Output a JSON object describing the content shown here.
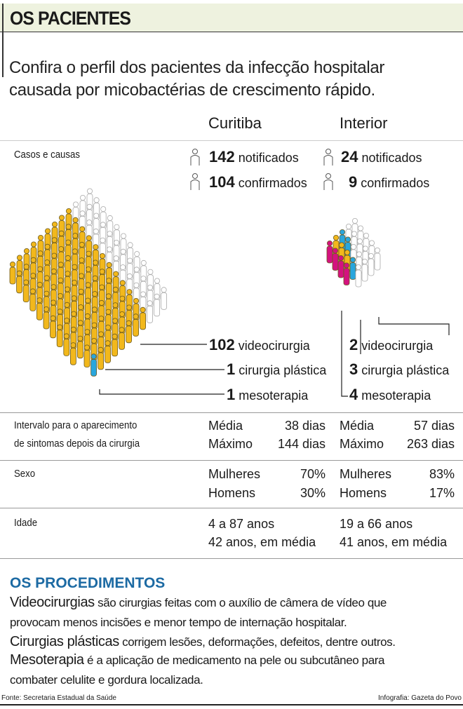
{
  "header": {
    "title": "OS PACIENTES",
    "subtitle_line1": "Confira o perfil dos pacientes da infecção hospitalar",
    "subtitle_line2": "causada por micobactérias de crescimento rápido."
  },
  "columns": {
    "curitiba": "Curitiba",
    "interior": "Interior"
  },
  "cases": {
    "label": "Casos e causas",
    "curitiba": {
      "notified": 142,
      "notified_label": "notificados",
      "confirmed": 104,
      "confirmed_label": "confirmados",
      "causes": [
        {
          "count": "102",
          "label": "videocirurgia"
        },
        {
          "count": "1",
          "label": "cirurgia plástica"
        },
        {
          "count": "1",
          "label": "mesoterapia"
        }
      ]
    },
    "interior": {
      "notified": 24,
      "notified_label": "notificados",
      "confirmed": 9,
      "confirmed_label": "confirmados",
      "causes": [
        {
          "count": "2",
          "label": "videocirurgia"
        },
        {
          "count": "3",
          "label": "cirurgia plástica"
        },
        {
          "count": "4",
          "label": "mesoterapia"
        }
      ]
    },
    "colors": {
      "videocirurgia": "#f2b81c",
      "cirurgia_plastica": "#29a6dd",
      "mesoterapia": "#d4127f",
      "not_confirmed": "#ffffff"
    }
  },
  "interval": {
    "label_line1": "Intervalo para o aparecimento",
    "label_line2": "de sintomas depois da cirurgia",
    "curitiba": {
      "avg_label": "Média",
      "avg": "38 dias",
      "max_label": "Máximo",
      "max": "144 dias"
    },
    "interior": {
      "avg_label": "Média",
      "avg": "57 dias",
      "max_label": "Máximo",
      "max": "263 dias"
    }
  },
  "sex": {
    "label": "Sexo",
    "curitiba": {
      "women_label": "Mulheres",
      "women": "70%",
      "men_label": "Homens",
      "men": "30%"
    },
    "interior": {
      "women_label": "Mulheres",
      "women": "83%",
      "men_label": "Homens",
      "men": "17%"
    }
  },
  "age": {
    "label": "Idade",
    "curitiba": {
      "range": "4 a 87 anos",
      "avg": "42 anos, em média"
    },
    "interior": {
      "range": "19 a 66 anos",
      "avg": "41 anos, em média"
    }
  },
  "procedures": {
    "title": "OS PROCEDIMENTOS",
    "items": [
      {
        "term": "Videocirurgias",
        "text": "são cirurgias feitas com o auxílio de câmera de vídeo que",
        "text2": "provocam menos incisões e menor tempo de internação hospitalar."
      },
      {
        "term": "Cirurgias plásticas",
        "text": "corrigem lesões, deformações, defeitos, dentre outros."
      },
      {
        "term": "Mesoterapia",
        "text": "é a aplicação de medicamento na pele ou subcutâneo para",
        "text2": "combater celulite e gordura localizada."
      }
    ]
  },
  "footer": {
    "source": "Fonte: Secretaria Estadual da Saúde",
    "credit": "Infografia: Gazeta do Povo"
  }
}
